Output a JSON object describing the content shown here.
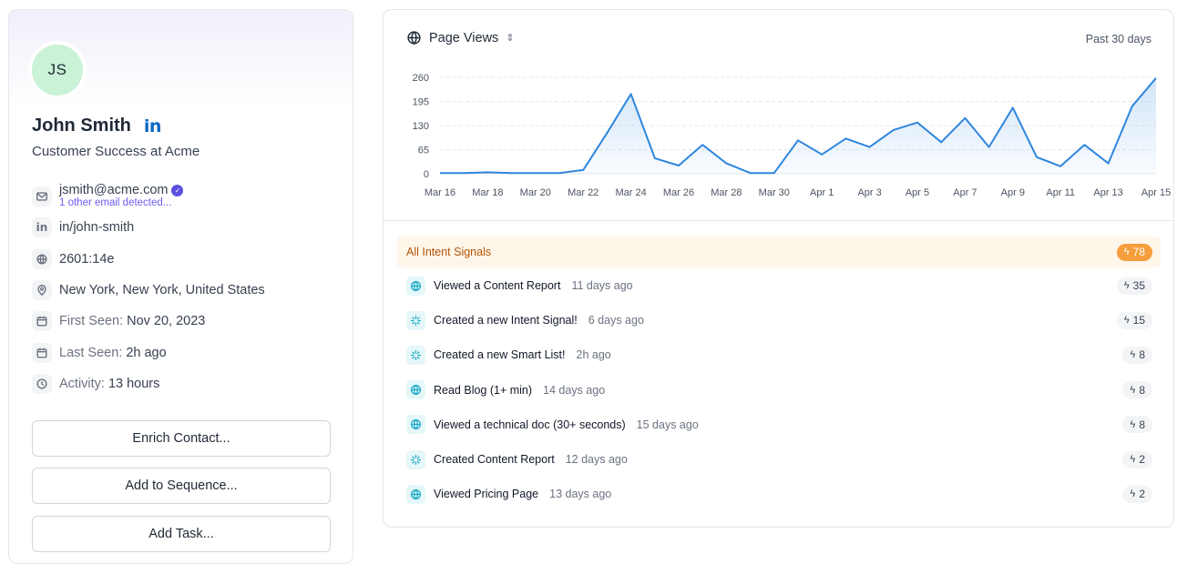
{
  "contact": {
    "initials": "JS",
    "name": "John Smith",
    "linkedin_logo": "in",
    "role": "Customer Success at Acme",
    "email": "jsmith@acme.com",
    "other_email": "1 other email detected...",
    "linkedin_handle": "in/john-smith",
    "ip": "2601:14e",
    "location": "New York, New York, United States",
    "first_seen_label": "First Seen:",
    "first_seen": "Nov 20, 2023",
    "last_seen_label": "Last Seen:",
    "last_seen": "2h ago",
    "activity_label": "Activity:",
    "activity": "13 hours",
    "icons": [
      "mail-icon",
      "linkedin-icon",
      "globe-network-icon",
      "location-pin-icon",
      "calendar-icon",
      "calendar-icon",
      "clock-icon"
    ]
  },
  "actions": {
    "enrich": "Enrich Contact...",
    "sequence": "Add to Sequence...",
    "task": "Add Task..."
  },
  "chart_header": {
    "title": "Page Views",
    "range": "Past 30 days"
  },
  "chart_data": {
    "type": "area",
    "title": "Page Views",
    "x": [
      "Mar 16",
      "Mar 17",
      "Mar 18",
      "Mar 19",
      "Mar 20",
      "Mar 21",
      "Mar 22",
      "Mar 23",
      "Mar 24",
      "Mar 25",
      "Mar 26",
      "Mar 27",
      "Mar 28",
      "Mar 29",
      "Mar 30",
      "Mar 31",
      "Apr 1",
      "Apr 2",
      "Apr 3",
      "Apr 4",
      "Apr 5",
      "Apr 6",
      "Apr 7",
      "Apr 8",
      "Apr 9",
      "Apr 10",
      "Apr 11",
      "Apr 12",
      "Apr 13",
      "Apr 14",
      "Apr 15"
    ],
    "xticks": [
      "Mar 16",
      "Mar 18",
      "Mar 20",
      "Mar 22",
      "Mar 24",
      "Mar 26",
      "Mar 28",
      "Mar 30",
      "Apr 1",
      "Apr 3",
      "Apr 5",
      "Apr 7",
      "Apr 9",
      "Apr 11",
      "Apr 13",
      "Apr 15"
    ],
    "values": [
      2,
      2,
      4,
      2,
      2,
      2,
      10,
      110,
      215,
      42,
      22,
      78,
      28,
      2,
      2,
      90,
      52,
      95,
      72,
      118,
      138,
      85,
      150,
      72,
      178,
      45,
      20,
      78,
      28,
      182,
      258
    ],
    "yticks": [
      0,
      65,
      130,
      195,
      260
    ],
    "ylim": [
      0,
      260
    ],
    "grid": true,
    "color": "#2f86de"
  },
  "signals": {
    "header": "All Intent Signals",
    "total": "78",
    "bolt": "ϟ",
    "items": [
      {
        "title": "Viewed a Content Report",
        "time": "11 days ago",
        "score": "35",
        "icon": "globe-icon"
      },
      {
        "title": "Created a new Intent Signal!",
        "time": "6 days ago",
        "score": "15",
        "icon": "sparkle-icon"
      },
      {
        "title": "Created a new Smart List!",
        "time": "2h ago",
        "score": "8",
        "icon": "sparkle-icon"
      },
      {
        "title": "Read Blog (1+ min)",
        "time": "14 days ago",
        "score": "8",
        "icon": "globe-icon"
      },
      {
        "title": "Viewed a technical doc (30+ seconds)",
        "time": "15 days ago",
        "score": "8",
        "icon": "globe-icon"
      },
      {
        "title": "Created Content Report",
        "time": "12 days ago",
        "score": "2",
        "icon": "sparkle-icon"
      },
      {
        "title": "Viewed Pricing Page",
        "time": "13 days ago",
        "score": "2",
        "icon": "globe-icon"
      }
    ]
  }
}
